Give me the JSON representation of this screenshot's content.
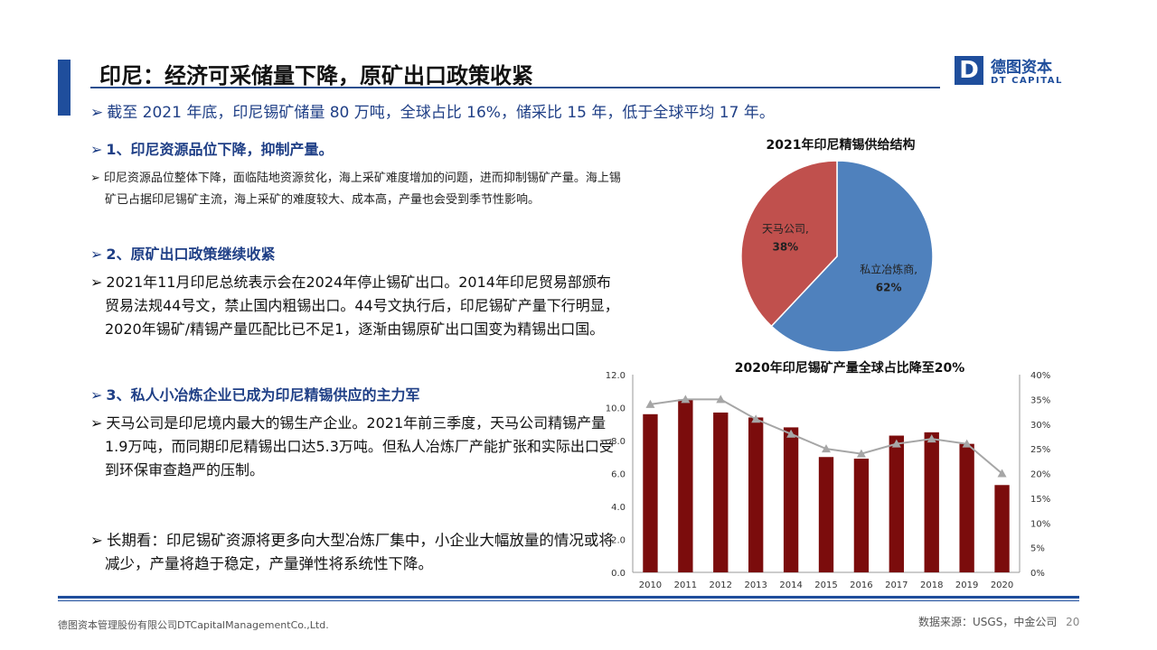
{
  "header": {
    "title": "印尼：经济可采储量下降，原矿出口政策收紧",
    "logo_mark": "D",
    "logo_cn": "德图资本",
    "logo_en": "DT CAPITAL"
  },
  "summary": "截至 2021 年底，印尼锡矿储量 80 万吨，全球占比 16%，储采比 15 年，低于全球平均 17 年。",
  "sections": {
    "s1_heading": "1、印尼资源品位下降，抑制产量。",
    "s1_body": "印尼资源品位整体下降，面临陆地资源贫化，海上采矿难度增加的问题，进而抑制锡矿产量。海上锡矿已占据印尼锡矿主流，海上采矿的难度较大、成本高，产量也会受到季节性影响。",
    "s2_heading": "2、原矿出口政策继续收紧",
    "s2_body": "2021年11月印尼总统表示会在2024年停止锡矿出口。2014年印尼贸易部颁布贸易法规44号文，禁止国内粗锡出口。44号文执行后，印尼锡矿产量下行明显，2020年锡矿/精锡产量匹配比已不足1，逐渐由锡原矿出口国变为精锡出口国。",
    "s3_heading": "3、私人小冶炼企业已成为印尼精锡供应的主力军",
    "s3_body": "天马公司是印尼境内最大的锡生产企业。2021年前三季度，天马公司精锡产量1.9万吨，而同期印尼精锡出口达5.3万吨。但私人冶炼厂产能扩张和实际出口受到环保审查趋严的压制。",
    "longterm": "长期看：印尼锡矿资源将更多向大型冶炼厂集中，小企业大幅放量的情况或将减少，产量将趋于稳定，产量弹性将系统性下降。"
  },
  "chart_data": [
    {
      "type": "pie",
      "title": "2021年印尼精锡供给结构",
      "slices": [
        {
          "label": "私立冶炼商,",
          "value_label": "62%",
          "value": 62,
          "color": "#4f81bd"
        },
        {
          "label": "天马公司,",
          "value_label": "38%",
          "value": 38,
          "color": "#c0504d"
        }
      ]
    },
    {
      "type": "bar+line",
      "title": "2020年印尼锡矿产量全球占比降至20%",
      "categories": [
        "2010",
        "2011",
        "2012",
        "2013",
        "2014",
        "2015",
        "2016",
        "2017",
        "2018",
        "2019",
        "2020"
      ],
      "bars": {
        "values": [
          9.6,
          10.5,
          9.7,
          9.4,
          8.8,
          7.0,
          6.9,
          8.3,
          8.5,
          7.8,
          5.3
        ],
        "color": "#7b0c0c"
      },
      "line": {
        "values": [
          34,
          35,
          35,
          31,
          28,
          25,
          24,
          26,
          27,
          26,
          20
        ],
        "color": "#a6a6a6"
      },
      "y_left": {
        "min": 0,
        "max": 12,
        "ticks": [
          "0.0",
          "2.0",
          "4.0",
          "6.0",
          "8.0",
          "10.0",
          "12.0"
        ]
      },
      "y_right": {
        "min": 0,
        "max": 40,
        "ticks": [
          "0%",
          "5%",
          "10%",
          "15%",
          "20%",
          "25%",
          "30%",
          "35%",
          "40%"
        ]
      }
    }
  ],
  "footer": {
    "left": "德图资本管理股份有限公司DTCapitalManagementCo.,Ltd.",
    "source": "数据来源：USGS，中金公司",
    "page": "20"
  },
  "colors": {
    "accent": "#1f4e9c",
    "text_blue": "#1f3f86"
  }
}
